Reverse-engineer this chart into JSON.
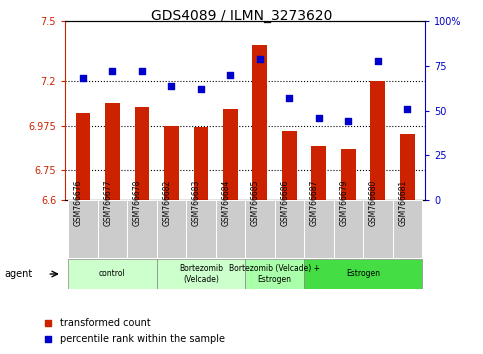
{
  "title": "GDS4089 / ILMN_3273620",
  "samples": [
    "GSM766676",
    "GSM766677",
    "GSM766678",
    "GSM766682",
    "GSM766683",
    "GSM766684",
    "GSM766685",
    "GSM766686",
    "GSM766687",
    "GSM766679",
    "GSM766680",
    "GSM766681"
  ],
  "red_values": [
    7.04,
    7.09,
    7.07,
    6.975,
    6.97,
    7.06,
    7.38,
    6.945,
    6.87,
    6.855,
    7.2,
    6.93
  ],
  "blue_values": [
    68,
    72,
    72,
    64,
    62,
    70,
    79,
    57,
    46,
    44,
    78,
    51
  ],
  "ylim_left": [
    6.6,
    7.5
  ],
  "ylim_right": [
    0,
    100
  ],
  "yticks_left": [
    6.6,
    6.75,
    6.975,
    7.2,
    7.5
  ],
  "ytick_labels_left": [
    "6.6",
    "6.75",
    "6.975",
    "7.2",
    "7.5"
  ],
  "yticks_right": [
    0,
    25,
    50,
    75,
    100
  ],
  "ytick_labels_right": [
    "0",
    "25",
    "50",
    "75",
    "100%"
  ],
  "hlines": [
    6.75,
    6.975,
    7.2
  ],
  "groups": [
    {
      "label": "control",
      "start": 0,
      "end": 3,
      "color": "#ccffcc"
    },
    {
      "label": "Bortezomib\n(Velcade)",
      "start": 3,
      "end": 6,
      "color": "#ccffcc"
    },
    {
      "label": "Bortezomib (Velcade) +\nEstrogen",
      "start": 6,
      "end": 8,
      "color": "#aaffaa"
    },
    {
      "label": "Estrogen",
      "start": 8,
      "end": 12,
      "color": "#44dd44"
    }
  ],
  "group_colors": [
    "#ccffcc",
    "#ccffcc",
    "#aaffaa",
    "#44dd44"
  ],
  "bar_color": "#cc2200",
  "dot_color": "#0000cc",
  "bar_width": 0.5,
  "legend_items": [
    {
      "label": "transformed count",
      "color": "#cc2200"
    },
    {
      "label": "percentile rank within the sample",
      "color": "#0000cc"
    }
  ],
  "agent_label": "agent",
  "left_axis_color": "#cc2200",
  "right_axis_color": "#0000cc",
  "bg_color": "white",
  "tick_label_bg": "#cccccc"
}
